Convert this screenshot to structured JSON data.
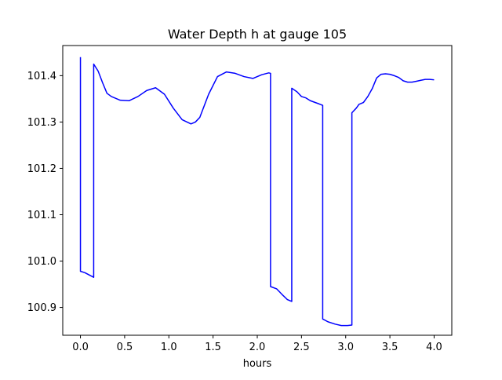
{
  "chart_data": {
    "type": "line",
    "title": "Water Depth h at gauge 105",
    "xlabel": "hours",
    "ylabel": "",
    "xlim": [
      -0.2,
      4.2
    ],
    "ylim": [
      100.84,
      101.465
    ],
    "grid": false,
    "legend": "none",
    "x_ticks": [
      0.0,
      0.5,
      1.0,
      1.5,
      2.0,
      2.5,
      3.0,
      3.5,
      4.0
    ],
    "x_tick_labels": [
      "0.0",
      "0.5",
      "1.0",
      "1.5",
      "2.0",
      "2.5",
      "3.0",
      "3.5",
      "4.0"
    ],
    "y_ticks": [
      100.9,
      101.0,
      101.1,
      101.2,
      101.3,
      101.4
    ],
    "y_tick_labels": [
      "100.9",
      "101.0",
      "101.1",
      "101.2",
      "101.3",
      "101.4"
    ],
    "series": [
      {
        "color": "#0000ff",
        "x": [
          0.0,
          0.0,
          0.05,
          0.15,
          0.15,
          0.2,
          0.25,
          0.3,
          0.35,
          0.45,
          0.55,
          0.65,
          0.75,
          0.85,
          0.95,
          1.05,
          1.15,
          1.25,
          1.3,
          1.35,
          1.45,
          1.55,
          1.65,
          1.75,
          1.85,
          1.95,
          2.05,
          2.13,
          2.15,
          2.15,
          2.22,
          2.28,
          2.34,
          2.39,
          2.39,
          2.45,
          2.5,
          2.55,
          2.6,
          2.7,
          2.74,
          2.74,
          2.8,
          2.88,
          2.95,
          3.02,
          3.07,
          3.07,
          3.12,
          3.15,
          3.2,
          3.25,
          3.3,
          3.35,
          3.4,
          3.45,
          3.5,
          3.55,
          3.6,
          3.65,
          3.7,
          3.75,
          3.8,
          3.85,
          3.9,
          3.95,
          4.0
        ],
        "y": [
          101.44,
          100.978,
          100.975,
          100.965,
          101.425,
          101.41,
          101.385,
          101.362,
          101.355,
          101.347,
          101.346,
          101.355,
          101.368,
          101.374,
          101.36,
          101.33,
          101.305,
          101.296,
          101.3,
          101.31,
          101.36,
          101.398,
          101.408,
          101.405,
          101.398,
          101.394,
          101.402,
          101.406,
          101.405,
          100.945,
          100.94,
          100.928,
          100.917,
          100.913,
          101.373,
          101.365,
          101.355,
          101.352,
          101.346,
          101.339,
          101.336,
          100.875,
          100.869,
          100.864,
          100.861,
          100.861,
          100.862,
          101.32,
          101.33,
          101.338,
          101.342,
          101.355,
          101.372,
          101.395,
          101.403,
          101.404,
          101.403,
          101.4,
          101.396,
          101.389,
          101.386,
          101.386,
          101.388,
          101.39,
          101.392,
          101.392,
          101.391
        ]
      }
    ]
  }
}
